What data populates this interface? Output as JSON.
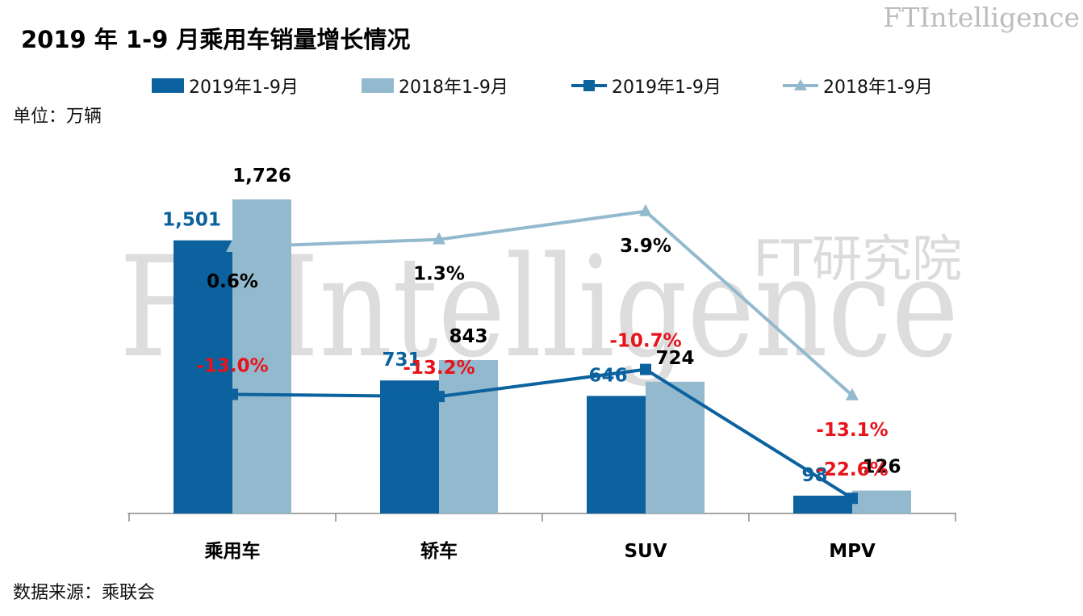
{
  "title": "2019 年 1-9 月乘用车销量增长情况",
  "unit_label": "单位：万辆",
  "source_label": "数据来源：乘联会",
  "brand": {
    "name": "FTIntelligence",
    "sub": "FT研究院"
  },
  "watermark": {
    "main": "FTIntelligence",
    "sub": "FT研究院"
  },
  "legend": [
    {
      "label": "2019年1-9月",
      "kind": "bar",
      "color": "#0b629f"
    },
    {
      "label": "2018年1-9月",
      "kind": "bar",
      "color": "#93b9ce"
    },
    {
      "label": "2019年1-9月",
      "kind": "line-square",
      "color": "#0b629f"
    },
    {
      "label": "2018年1-9月",
      "kind": "line-triangle",
      "color": "#93b9ce"
    }
  ],
  "colors": {
    "dark": "#0b629f",
    "light": "#93b9ce",
    "negative": "#e8141b",
    "text": "#000000"
  },
  "chart_data": {
    "type": "bar",
    "categories": [
      "乘用车",
      "轿车",
      "SUV",
      "MPV"
    ],
    "series": [
      {
        "name": "2019年1-9月",
        "type": "bar",
        "values": [
          1501,
          731,
          646,
          98
        ],
        "labels": [
          "1,501",
          "731",
          "646",
          "98"
        ]
      },
      {
        "name": "2018年1-9月",
        "type": "bar",
        "values": [
          1726,
          843,
          724,
          126
        ],
        "labels": [
          "1,726",
          "843",
          "724",
          "126"
        ]
      },
      {
        "name": "2019年1-9月",
        "type": "line",
        "values": [
          -13.0,
          -13.2,
          -10.7,
          -22.6
        ],
        "labels": [
          "-13.0%",
          "-13.2%",
          "-10.7%",
          "-22.6%"
        ]
      },
      {
        "name": "2018年1-9月",
        "type": "line",
        "values": [
          0.6,
          1.3,
          3.9,
          -13.1
        ],
        "labels": [
          "0.6%",
          "1.3%",
          "3.9%",
          "-13.1%"
        ]
      }
    ],
    "ylim": [
      0,
      1726
    ],
    "y2lim": [
      -24,
      5
    ],
    "grid": false,
    "legend_position": "top"
  }
}
